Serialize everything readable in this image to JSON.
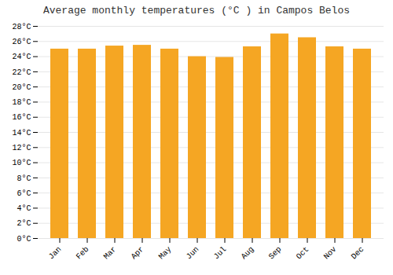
{
  "chart_data": {
    "type": "bar",
    "title": "Average monthly temperatures (°C ) in Campos Belos",
    "categories": [
      "Jan",
      "Feb",
      "Mar",
      "Apr",
      "May",
      "Jun",
      "Jul",
      "Aug",
      "Sep",
      "Oct",
      "Nov",
      "Dec"
    ],
    "values": [
      25.0,
      25.0,
      25.4,
      25.5,
      25.0,
      24.0,
      23.9,
      25.3,
      27.0,
      26.5,
      25.3,
      25.0
    ],
    "color": "#F5A623",
    "ylim": [
      0,
      28
    ],
    "yticks": [
      {
        "value": 0,
        "label": "0°C"
      },
      {
        "value": 2,
        "label": "2°C"
      },
      {
        "value": 4,
        "label": "4°C"
      },
      {
        "value": 6,
        "label": "6°C"
      },
      {
        "value": 8,
        "label": "8°C"
      },
      {
        "value": 10,
        "label": "10°C"
      },
      {
        "value": 12,
        "label": "12°C"
      },
      {
        "value": 14,
        "label": "14°C"
      },
      {
        "value": 16,
        "label": "16°C"
      },
      {
        "value": 18,
        "label": "18°C"
      },
      {
        "value": 20,
        "label": "20°C"
      },
      {
        "value": 22,
        "label": "22°C"
      },
      {
        "value": 24,
        "label": "24°C"
      },
      {
        "value": 26,
        "label": "26°C"
      },
      {
        "value": 28,
        "label": "28°C"
      }
    ],
    "grid": true
  }
}
